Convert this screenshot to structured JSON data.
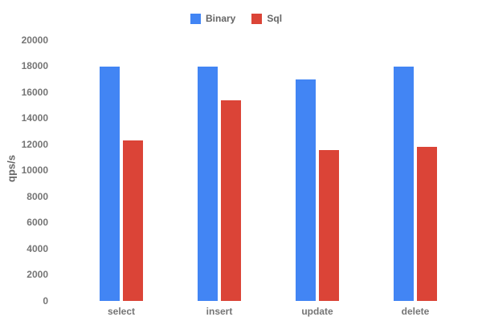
{
  "chart_data": {
    "type": "bar",
    "title": "",
    "categories": [
      "select",
      "insert",
      "update",
      "delete"
    ],
    "series": [
      {
        "name": "Binary",
        "color": "#4285f4",
        "values": [
          18000,
          18000,
          17000,
          18000
        ]
      },
      {
        "name": "Sql",
        "color": "#db4437",
        "values": [
          12300,
          15400,
          11600,
          11800
        ]
      }
    ],
    "xlabel": "",
    "ylabel": "qps/s",
    "ylim": [
      0,
      20000
    ],
    "ytick_step": 2000,
    "ytick_labels": [
      "0",
      "2000",
      "4000",
      "6000",
      "8000",
      "10000",
      "12000",
      "14000",
      "16000",
      "18000",
      "20000"
    ],
    "grid": false,
    "axis_lines": false,
    "legend_position": "top",
    "colors": {
      "background": "#ffffff",
      "axis_text": "#757575",
      "legend_text": "#666666"
    }
  }
}
